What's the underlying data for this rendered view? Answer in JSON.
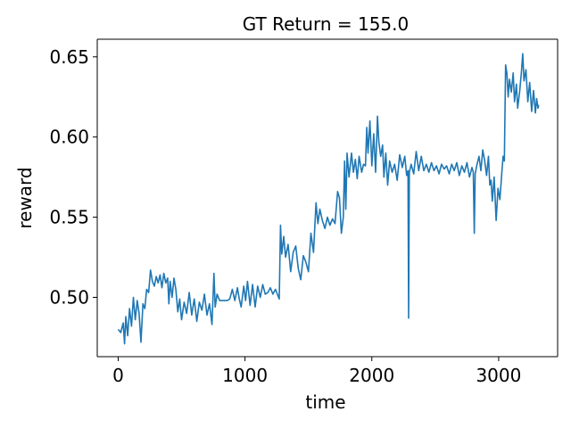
{
  "chart_data": {
    "type": "line",
    "title": "GT Return = 155.0",
    "xlabel": "time",
    "ylabel": "reward",
    "xlim": [
      -165,
      3465
    ],
    "ylim": [
      0.463,
      0.661
    ],
    "xticks": [
      0,
      1000,
      2000,
      3000
    ],
    "xtick_labels": [
      "0",
      "1000",
      "2000",
      "3000"
    ],
    "yticks": [
      0.5,
      0.55,
      0.6,
      0.65
    ],
    "ytick_labels": [
      "0.50",
      "0.55",
      "0.60",
      "0.65"
    ],
    "grid": false,
    "legend": "none",
    "series": [
      {
        "color": "#1f77b4",
        "points": [
          [
            0,
            0.48
          ],
          [
            20,
            0.478
          ],
          [
            40,
            0.484
          ],
          [
            50,
            0.471
          ],
          [
            60,
            0.488
          ],
          [
            75,
            0.476
          ],
          [
            90,
            0.493
          ],
          [
            105,
            0.482
          ],
          [
            120,
            0.5
          ],
          [
            135,
            0.486
          ],
          [
            150,
            0.498
          ],
          [
            165,
            0.49
          ],
          [
            180,
            0.472
          ],
          [
            195,
            0.496
          ],
          [
            210,
            0.493
          ],
          [
            225,
            0.505
          ],
          [
            240,
            0.503
          ],
          [
            255,
            0.517
          ],
          [
            270,
            0.51
          ],
          [
            285,
            0.507
          ],
          [
            300,
            0.513
          ],
          [
            315,
            0.509
          ],
          [
            330,
            0.514
          ],
          [
            345,
            0.506
          ],
          [
            360,
            0.515
          ],
          [
            375,
            0.509
          ],
          [
            390,
            0.512
          ],
          [
            400,
            0.496
          ],
          [
            410,
            0.51
          ],
          [
            425,
            0.5
          ],
          [
            440,
            0.512
          ],
          [
            455,
            0.505
          ],
          [
            470,
            0.491
          ],
          [
            485,
            0.499
          ],
          [
            500,
            0.486
          ],
          [
            520,
            0.497
          ],
          [
            540,
            0.49
          ],
          [
            560,
            0.503
          ],
          [
            580,
            0.489
          ],
          [
            600,
            0.499
          ],
          [
            620,
            0.485
          ],
          [
            640,
            0.497
          ],
          [
            660,
            0.492
          ],
          [
            680,
            0.502
          ],
          [
            700,
            0.489
          ],
          [
            720,
            0.496
          ],
          [
            740,
            0.483
          ],
          [
            755,
            0.515
          ],
          [
            765,
            0.494
          ],
          [
            780,
            0.502
          ],
          [
            800,
            0.498
          ],
          [
            830,
            0.498
          ],
          [
            860,
            0.498
          ],
          [
            880,
            0.499
          ],
          [
            900,
            0.505
          ],
          [
            920,
            0.498
          ],
          [
            940,
            0.506
          ],
          [
            955,
            0.499
          ],
          [
            970,
            0.494
          ],
          [
            990,
            0.507
          ],
          [
            1005,
            0.498
          ],
          [
            1020,
            0.51
          ],
          [
            1040,
            0.495
          ],
          [
            1060,
            0.508
          ],
          [
            1080,
            0.494
          ],
          [
            1100,
            0.507
          ],
          [
            1120,
            0.5
          ],
          [
            1140,
            0.508
          ],
          [
            1160,
            0.502
          ],
          [
            1180,
            0.503
          ],
          [
            1200,
            0.506
          ],
          [
            1220,
            0.502
          ],
          [
            1240,
            0.505
          ],
          [
            1260,
            0.501
          ],
          [
            1270,
            0.499
          ],
          [
            1280,
            0.545
          ],
          [
            1290,
            0.527
          ],
          [
            1305,
            0.538
          ],
          [
            1320,
            0.525
          ],
          [
            1340,
            0.533
          ],
          [
            1360,
            0.516
          ],
          [
            1380,
            0.528
          ],
          [
            1400,
            0.532
          ],
          [
            1420,
            0.518
          ],
          [
            1440,
            0.511
          ],
          [
            1460,
            0.526
          ],
          [
            1480,
            0.522
          ],
          [
            1500,
            0.516
          ],
          [
            1520,
            0.54
          ],
          [
            1540,
            0.528
          ],
          [
            1560,
            0.559
          ],
          [
            1575,
            0.546
          ],
          [
            1590,
            0.555
          ],
          [
            1610,
            0.548
          ],
          [
            1630,
            0.543
          ],
          [
            1650,
            0.55
          ],
          [
            1670,
            0.545
          ],
          [
            1690,
            0.549
          ],
          [
            1710,
            0.546
          ],
          [
            1730,
            0.566
          ],
          [
            1745,
            0.562
          ],
          [
            1760,
            0.54
          ],
          [
            1775,
            0.55
          ],
          [
            1785,
            0.585
          ],
          [
            1795,
            0.555
          ],
          [
            1805,
            0.59
          ],
          [
            1820,
            0.575
          ],
          [
            1840,
            0.59
          ],
          [
            1855,
            0.578
          ],
          [
            1870,
            0.586
          ],
          [
            1885,
            0.574
          ],
          [
            1900,
            0.588
          ],
          [
            1920,
            0.578
          ],
          [
            1935,
            0.583
          ],
          [
            1950,
            0.582
          ],
          [
            1960,
            0.606
          ],
          [
            1970,
            0.59
          ],
          [
            1985,
            0.61
          ],
          [
            2000,
            0.582
          ],
          [
            2015,
            0.602
          ],
          [
            2030,
            0.578
          ],
          [
            2045,
            0.613
          ],
          [
            2055,
            0.597
          ],
          [
            2070,
            0.588
          ],
          [
            2085,
            0.595
          ],
          [
            2095,
            0.575
          ],
          [
            2110,
            0.59
          ],
          [
            2125,
            0.57
          ],
          [
            2140,
            0.585
          ],
          [
            2160,
            0.578
          ],
          [
            2180,
            0.583
          ],
          [
            2200,
            0.573
          ],
          [
            2220,
            0.589
          ],
          [
            2240,
            0.581
          ],
          [
            2260,
            0.588
          ],
          [
            2275,
            0.576
          ],
          [
            2285,
            0.579
          ],
          [
            2290,
            0.487
          ],
          [
            2296,
            0.578
          ],
          [
            2310,
            0.583
          ],
          [
            2330,
            0.577
          ],
          [
            2350,
            0.591
          ],
          [
            2370,
            0.579
          ],
          [
            2390,
            0.588
          ],
          [
            2410,
            0.579
          ],
          [
            2430,
            0.583
          ],
          [
            2450,
            0.578
          ],
          [
            2470,
            0.584
          ],
          [
            2490,
            0.579
          ],
          [
            2510,
            0.582
          ],
          [
            2530,
            0.577
          ],
          [
            2550,
            0.583
          ],
          [
            2570,
            0.58
          ],
          [
            2590,
            0.582
          ],
          [
            2610,
            0.577
          ],
          [
            2630,
            0.583
          ],
          [
            2650,
            0.579
          ],
          [
            2670,
            0.584
          ],
          [
            2690,
            0.576
          ],
          [
            2710,
            0.582
          ],
          [
            2730,
            0.578
          ],
          [
            2750,
            0.584
          ],
          [
            2770,
            0.575
          ],
          [
            2790,
            0.581
          ],
          [
            2800,
            0.578
          ],
          [
            2808,
            0.54
          ],
          [
            2815,
            0.577
          ],
          [
            2830,
            0.583
          ],
          [
            2845,
            0.588
          ],
          [
            2860,
            0.579
          ],
          [
            2875,
            0.592
          ],
          [
            2890,
            0.585
          ],
          [
            2905,
            0.576
          ],
          [
            2920,
            0.588
          ],
          [
            2930,
            0.57
          ],
          [
            2940,
            0.573
          ],
          [
            2950,
            0.56
          ],
          [
            2965,
            0.575
          ],
          [
            2980,
            0.548
          ],
          [
            2995,
            0.568
          ],
          [
            3010,
            0.561
          ],
          [
            3025,
            0.578
          ],
          [
            3035,
            0.588
          ],
          [
            3045,
            0.585
          ],
          [
            3055,
            0.645
          ],
          [
            3065,
            0.64
          ],
          [
            3075,
            0.625
          ],
          [
            3085,
            0.636
          ],
          [
            3100,
            0.628
          ],
          [
            3115,
            0.64
          ],
          [
            3125,
            0.622
          ],
          [
            3140,
            0.633
          ],
          [
            3150,
            0.618
          ],
          [
            3165,
            0.628
          ],
          [
            3180,
            0.641
          ],
          [
            3190,
            0.652
          ],
          [
            3200,
            0.635
          ],
          [
            3215,
            0.642
          ],
          [
            3230,
            0.622
          ],
          [
            3245,
            0.634
          ],
          [
            3260,
            0.616
          ],
          [
            3275,
            0.629
          ],
          [
            3290,
            0.615
          ],
          [
            3300,
            0.624
          ],
          [
            3310,
            0.618
          ],
          [
            3315,
            0.62
          ]
        ]
      }
    ]
  }
}
